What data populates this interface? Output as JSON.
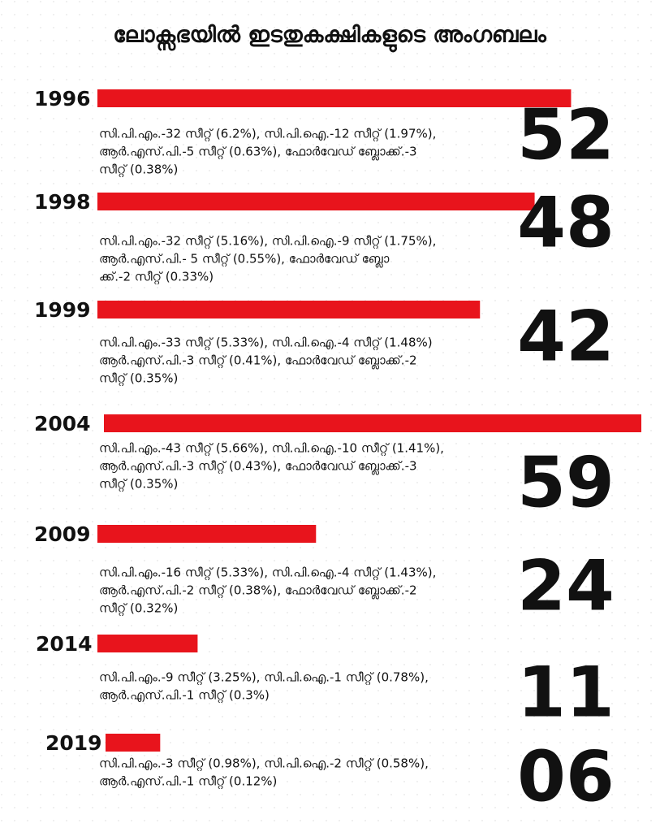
{
  "chart_data": {
    "type": "bar",
    "orientation": "horizontal",
    "title": "ലോക്സഭയിൽ ഇടതുകക്ഷികളുടെ അംഗബലം",
    "categories": [
      "1996",
      "1998",
      "1999",
      "2004",
      "2009",
      "2014",
      "2019"
    ],
    "values": [
      52,
      48,
      42,
      59,
      24,
      11,
      6
    ],
    "value_labels": [
      "52",
      "48",
      "42",
      "59",
      "24",
      "11",
      "06"
    ],
    "color": "#e8141c",
    "notes": [
      [
        "സി.പി.എം.-32 സീറ്റ് (6.2%),  സി.പി.ഐ.-12 സീറ്റ് (1.97%),",
        "ആർ.എസ്.പി.-5 സീറ്റ് (0.63%), ഫോർവേഡ് ബ്ലോക്ക്.-3",
        "സീറ്റ് (0.38%)"
      ],
      [
        "സി.പി.എം.-32 സീറ്റ് (5.16%), സി.പി.ഐ.-9 സീറ്റ് (1.75%),",
        "ആർ.എസ്.പി.- 5 സീറ്റ് (0.55%), ഫോർവേഡ് ബ്ലോ",
        "ക്ക്.-2 സീറ്റ് (0.33%)"
      ],
      [
        "സി.പി.എം.-33 സീറ്റ് (5.33%), സി.പി.ഐ.-4 സീറ്റ് (1.48%)",
        "ആർ.എസ്.പി.-3 സീറ്റ് (0.41%), ഫോർവേഡ് ബ്ലോക്ക്.-2",
        "സീറ്റ് (0.35%)"
      ],
      [
        "സി.പി.എം.-43 സീറ്റ് (5.66%), സി.പി.ഐ.-10 സീറ്റ് (1.41%),",
        "ആർ.എസ്.പി.-3 സീറ്റ് (0.43%), ഫോർവേഡ് ബ്ലോക്ക്.-3",
        "സീറ്റ് (0.35%)"
      ],
      [
        "സി.പി.എം.-16 സീറ്റ് (5.33%), സി.പി.ഐ.-4 സീറ്റ് (1.43%),",
        "ആർ.എസ്.പി.-2 സീറ്റ് (0.38%), ഫോർവേഡ് ബ്ലോക്ക്.-2",
        "സീറ്റ് (0.32%)"
      ],
      [
        "സി.പി.എം.-9 സീറ്റ് (3.25%),  സി.പി.ഐ.-1 സീറ്റ് (0.78%),",
        "ആർ.എസ്.പി.-1 സീറ്റ് (0.3%)"
      ],
      [
        "സി.പി.എം.-3 സീറ്റ് (0.98%), സി.പി.ഐ.-2 സീറ്റ് (0.58%),",
        "ആർ.എസ്.പി.-1 സീറ്റ് (0.12%)"
      ]
    ]
  }
}
